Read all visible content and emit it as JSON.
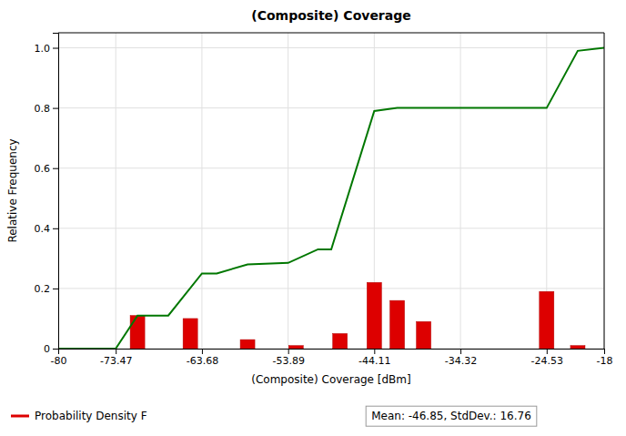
{
  "chart_data": {
    "type": "bar",
    "title": "(Composite) Coverage",
    "xlabel": "(Composite) Coverage [dBm]",
    "ylabel": "Relative Frequency",
    "xlim": [
      -80,
      -18
    ],
    "ylim": [
      0,
      1.05
    ],
    "xticks": [
      -80,
      -73.47,
      -63.68,
      -53.89,
      -44.11,
      -34.32,
      -24.53,
      -18
    ],
    "yticks": [
      0,
      0.2,
      0.4,
      0.6,
      0.8,
      {
        "value": 1.0,
        "label": "1.0"
      }
    ],
    "grid": true,
    "legend": "bottom-left",
    "series": [
      {
        "name": "Probability Density F",
        "type": "bar",
        "color": "#DD0000",
        "x": [
          -71.0,
          -67.5,
          -65.0,
          -62.0,
          -58.5,
          -56.0,
          -53.0,
          -50.5,
          -48.0,
          -46.0,
          -44.11,
          -41.5,
          -38.5,
          -36.0,
          -24.53,
          -21.0,
          -19.0
        ],
        "values": [
          0.11,
          0.0,
          0.1,
          0.0,
          0.03,
          0.0,
          0.01,
          0.0,
          0.05,
          0.0,
          0.22,
          0.16,
          0.09,
          0.0,
          0.19,
          0.01,
          0.0
        ]
      },
      {
        "type": "line",
        "color": "#007700",
        "x": [
          -80,
          -73.47,
          -71.0,
          -67.5,
          -63.68,
          -62.0,
          -58.5,
          -53.89,
          -50.5,
          -48.995,
          -44.11,
          -41.5,
          -38.5,
          -34.32,
          -24.53,
          -21.0,
          -18
        ],
        "values": [
          0.0,
          0.0,
          0.11,
          0.11,
          0.25,
          0.25,
          0.28,
          0.285,
          0.33,
          0.33,
          0.79,
          0.8,
          0.8,
          0.8,
          0.8,
          0.99,
          1.0
        ]
      }
    ],
    "annotations": [
      "Mean: -46.85, StdDev.: 16.76"
    ]
  }
}
